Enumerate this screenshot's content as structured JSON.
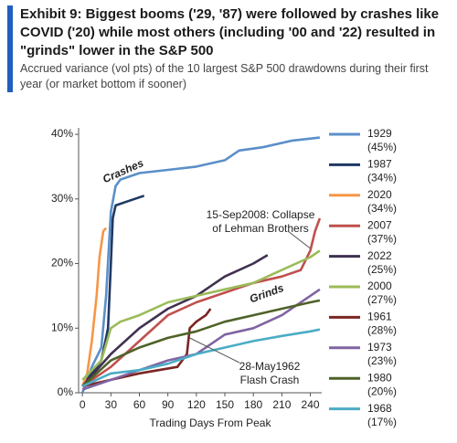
{
  "chart_data": {
    "type": "line",
    "title": "Exhibit 9: Biggest booms ('29, '87) were followed by crashes like COVID ('20) while most others (including '00 and '22) resulted in \"grinds\" lower in the S&P 500",
    "subtitle": "Accrued variance (vol pts) of the 10 largest S&P 500 drawdowns during their first year (or market bottom if sooner)",
    "x_label": "Trading Days From Peak",
    "xlim": [
      -4,
      252
    ],
    "xticks": [
      0,
      30,
      60,
      90,
      120,
      150,
      180,
      210,
      240
    ],
    "ylim": [
      0,
      41
    ],
    "yticks": [
      {
        "value": 0,
        "label": "0%"
      },
      {
        "value": 10,
        "label": "10%"
      },
      {
        "value": 20,
        "label": "20%"
      },
      {
        "value": 30,
        "label": "30%"
      },
      {
        "value": 40,
        "label": "40%"
      }
    ],
    "annotations": [
      [
        "Crashes"
      ],
      [
        "Grinds"
      ],
      [
        "15-Sep2008: Collapse",
        "of Lehman Brothers"
      ],
      [
        "28-May1962",
        "Flash Crash"
      ]
    ],
    "series": [
      {
        "name": "1929",
        "note": "(45%)",
        "color": "#5b8fc9",
        "x": [
          0,
          10,
          20,
          25,
          30,
          35,
          40,
          60,
          90,
          120,
          150,
          165,
          190,
          220,
          250
        ],
        "values": [
          0,
          4,
          7,
          15,
          28,
          32,
          33,
          34,
          34.5,
          35,
          36,
          37.5,
          38,
          39,
          39.5
        ]
      },
      {
        "name": "1987",
        "note": "(34%)",
        "color": "#1f3864",
        "x": [
          0,
          20,
          27,
          30,
          32,
          35,
          45,
          55,
          65
        ],
        "values": [
          1,
          5,
          10,
          20,
          27,
          29,
          29.5,
          30,
          30.5
        ]
      },
      {
        "name": "2020",
        "note": "(34%)",
        "color": "#f79646",
        "x": [
          0,
          5,
          10,
          15,
          18,
          22,
          25
        ],
        "values": [
          1,
          3,
          8,
          15,
          21,
          25,
          25.5
        ]
      },
      {
        "name": "2007",
        "note": "(37%)",
        "color": "#c0504d",
        "x": [
          0,
          30,
          60,
          90,
          120,
          150,
          180,
          210,
          230,
          240,
          245,
          250
        ],
        "values": [
          1,
          4,
          8,
          12,
          14,
          15.5,
          17,
          18,
          19,
          22,
          25,
          27
        ]
      },
      {
        "name": "2022",
        "note": "(25%)",
        "color": "#403151",
        "x": [
          0,
          30,
          60,
          90,
          120,
          150,
          180,
          195
        ],
        "values": [
          1,
          6,
          10,
          13,
          15,
          18,
          20,
          21.3
        ]
      },
      {
        "name": "2000",
        "note": "(27%)",
        "color": "#9bbb59",
        "x": [
          0,
          20,
          30,
          40,
          60,
          90,
          120,
          150,
          180,
          210,
          240,
          250
        ],
        "values": [
          2,
          5,
          10,
          11,
          12,
          14,
          15,
          16,
          17,
          19,
          21,
          22
        ]
      },
      {
        "name": "1961",
        "note": "(28%)",
        "color": "#7b2523",
        "x": [
          0,
          60,
          100,
          110,
          113,
          120,
          130,
          135
        ],
        "values": [
          1,
          3,
          4,
          6,
          10,
          11,
          12,
          13
        ]
      },
      {
        "name": "1973",
        "note": "(23%)",
        "color": "#8064a2",
        "x": [
          0,
          30,
          60,
          90,
          120,
          150,
          180,
          210,
          240,
          250
        ],
        "values": [
          0.5,
          2,
          3.5,
          5,
          6,
          9,
          10,
          12,
          15,
          16
        ]
      },
      {
        "name": "1980",
        "note": "(20%)",
        "color": "#4f6228",
        "x": [
          0,
          30,
          60,
          90,
          120,
          150,
          180,
          210,
          240,
          250
        ],
        "values": [
          1,
          5,
          7,
          8.5,
          9.5,
          11,
          12,
          13,
          14,
          14.3
        ]
      },
      {
        "name": "1968",
        "note": "(17%)",
        "color": "#4bacc6",
        "x": [
          0,
          30,
          60,
          90,
          120,
          150,
          180,
          210,
          240,
          250
        ],
        "values": [
          1,
          3,
          3.5,
          4.5,
          6,
          7,
          8,
          8.8,
          9.5,
          9.8
        ]
      }
    ]
  }
}
